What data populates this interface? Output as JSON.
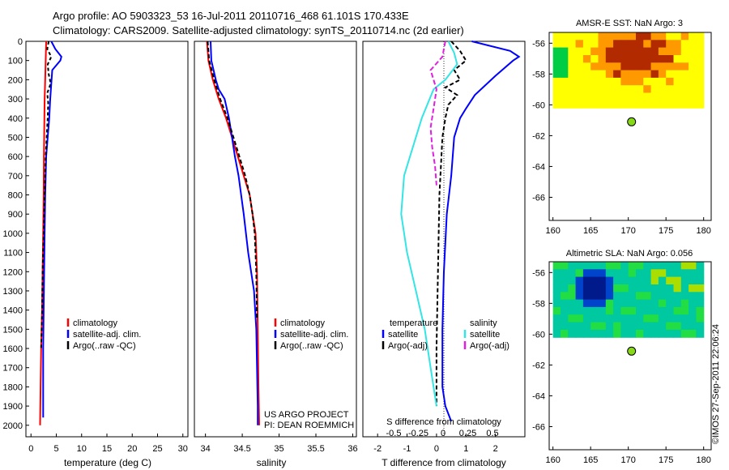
{
  "header": {
    "line1": "Argo profile: AO 5903323_53 16-Jul-2011 20110716_468 61.101S 170.433E",
    "line2": "Climatology: CARS2009. Satellite-adjusted climatology: synTS_20110714.nc (2d earlier)"
  },
  "credit": "©IMOS 27-Sep-2011 22:06:24",
  "project": {
    "line1": "US ARGO PROJECT",
    "line2": "PI: DEAN ROEMMICH"
  },
  "colors": {
    "climatology": "#ff0000",
    "satellite": "#0000ff",
    "argo": "#000000",
    "sal_satellite": "#33e5e5",
    "sal_argo": "#e01fe0",
    "dot": "#88d81a"
  },
  "chart_data": [
    {
      "type": "line",
      "id": "temperature",
      "xlabel": "temperature (deg C)",
      "ylabel": "",
      "xlim": [
        -1,
        31
      ],
      "ylim": [
        2060,
        0
      ],
      "xticks": [
        0,
        5,
        10,
        15,
        20,
        25,
        30
      ],
      "yticks": [
        0,
        100,
        200,
        300,
        400,
        500,
        600,
        700,
        800,
        900,
        1000,
        1100,
        1200,
        1300,
        1400,
        1500,
        1600,
        1700,
        1800,
        1900,
        2000
      ],
      "legend": [
        {
          "label": "climatology",
          "key": "climatology"
        },
        {
          "label": "satellite-adj. clim.",
          "key": "satellite"
        },
        {
          "label": "Argo(..raw -QC)",
          "key": "argo"
        }
      ],
      "series": [
        {
          "name": "climatology",
          "key": "climatology",
          "dash": "",
          "x": [
            3.0,
            2.9,
            2.8,
            2.7,
            2.65,
            2.6,
            2.55,
            2.5,
            2.4,
            2.3,
            2.2,
            2.0,
            1.9,
            1.8
          ],
          "y": [
            0,
            100,
            200,
            300,
            400,
            500,
            600,
            800,
            1000,
            1200,
            1400,
            1600,
            1800,
            2000
          ]
        },
        {
          "name": "satellite-adj. clim.",
          "key": "satellite",
          "dash": "",
          "x": [
            4.0,
            4.8,
            6.0,
            5.8,
            4.2,
            3.8,
            3.6,
            3.3,
            3.0,
            2.8,
            2.7,
            2.6,
            2.5,
            2.4,
            2.4,
            2.4
          ],
          "y": [
            0,
            40,
            80,
            100,
            150,
            300,
            400,
            500,
            600,
            800,
            1000,
            1200,
            1400,
            1600,
            1800,
            1960
          ]
        },
        {
          "name": "Argo(..raw -QC)",
          "key": "argo",
          "dash": "4,3",
          "x": [
            3.5,
            3.2,
            4.0,
            3.3,
            3.5,
            3.9,
            3.2,
            3.4,
            3.3,
            3.1,
            2.9,
            2.7,
            2.5,
            2.3,
            2.2,
            2.0
          ],
          "y": [
            0,
            40,
            80,
            120,
            170,
            220,
            270,
            320,
            400,
            500,
            600,
            800,
            1000,
            1200,
            1400,
            1600
          ]
        }
      ]
    },
    {
      "type": "line",
      "id": "salinity",
      "xlabel": "salinity",
      "ylabel": "",
      "xlim": [
        33.85,
        36.05
      ],
      "ylim": [
        2060,
        0
      ],
      "xticks": [
        34,
        34.5,
        35,
        35.5,
        36
      ],
      "xticklabels": [
        "34",
        "34.5",
        "35",
        "35.5",
        "36"
      ],
      "legend": [
        {
          "label": "climatology",
          "key": "climatology"
        },
        {
          "label": "satellite-adj. clim.",
          "key": "satellite"
        },
        {
          "label": "Argo(..raw -QC)",
          "key": "argo"
        }
      ],
      "series": [
        {
          "name": "climatology",
          "key": "climatology",
          "dash": "",
          "x": [
            34.02,
            34.04,
            34.1,
            34.18,
            34.28,
            34.36,
            34.44,
            34.52,
            34.6,
            34.64,
            34.68,
            34.7,
            34.71,
            34.72,
            34.73
          ],
          "y": [
            0,
            100,
            200,
            300,
            400,
            500,
            600,
            700,
            800,
            900,
            1000,
            1200,
            1500,
            1800,
            2000
          ]
        },
        {
          "name": "satellite-adj. clim.",
          "key": "satellite",
          "dash": "",
          "x": [
            34.07,
            34.08,
            34.14,
            34.18,
            34.26,
            34.32,
            34.36,
            34.4,
            34.45,
            34.52,
            34.58,
            34.62,
            34.66,
            34.69,
            34.7,
            34.71,
            34.71
          ],
          "y": [
            0,
            100,
            200,
            250,
            300,
            400,
            500,
            600,
            700,
            900,
            1100,
            1200,
            1300,
            1500,
            1700,
            1900,
            2000
          ]
        },
        {
          "name": "Argo(..raw -QC)",
          "key": "argo",
          "dash": "5,3",
          "x": [
            34.03,
            34.05,
            34.12,
            34.2,
            34.3,
            34.38,
            34.46,
            34.54,
            34.6,
            34.64,
            34.67,
            34.69,
            34.7
          ],
          "y": [
            0,
            100,
            200,
            300,
            400,
            500,
            600,
            700,
            800,
            900,
            1000,
            1200,
            1450
          ]
        }
      ]
    },
    {
      "type": "line",
      "id": "difference",
      "xlabel": "T difference from climatology",
      "ylabel": "",
      "xlim": [
        -2.5,
        3.0
      ],
      "ylim": [
        2060,
        0
      ],
      "xticks": [
        -2,
        -1,
        0,
        1,
        2
      ],
      "secondary_xlabel": "S difference from climatology",
      "secondary_xticks": [
        "-0.5",
        "-0.25",
        "0",
        "0.25",
        "0.5"
      ],
      "legend": [
        {
          "label": "temperature",
          "key": "header_t"
        },
        {
          "label": "satellite",
          "key": "satellite"
        },
        {
          "label": "Argo(-adj)",
          "key": "argo"
        },
        {
          "label": "salinity",
          "key": "header_s"
        },
        {
          "label": "satellite",
          "key": "sal_satellite"
        },
        {
          "label": "Argo(-adj)",
          "key": "sal_argo"
        }
      ],
      "series": [
        {
          "name": "T satellite",
          "key": "satellite",
          "dash": "",
          "x": [
            1.2,
            2.5,
            2.8,
            2.6,
            2.0,
            1.3,
            1.0,
            0.8,
            0.6,
            0.5,
            0.35,
            0.25,
            0.2,
            0.2,
            0.3,
            0.5
          ],
          "y": [
            0,
            50,
            80,
            100,
            180,
            280,
            350,
            400,
            500,
            700,
            900,
            1200,
            1500,
            1800,
            1900,
            1980
          ]
        },
        {
          "name": "T Argo(-adj)",
          "key": "argo",
          "dash": "5,3",
          "x": [
            0.5,
            0.8,
            1.0,
            0.6,
            0.8,
            0.3,
            0.7,
            0.4,
            0.3,
            0.2,
            0.1,
            0.05,
            0.0,
            0.0
          ],
          "y": [
            0,
            50,
            100,
            150,
            200,
            240,
            280,
            330,
            400,
            500,
            800,
            1200,
            1600,
            1900
          ]
        },
        {
          "name": "S satellite",
          "key": "sal_satellite",
          "dash": "",
          "x": [
            0.4,
            0.6,
            0.7,
            0.3,
            -0.1,
            -0.5,
            -0.8,
            -1.1,
            -1.2,
            -1.0,
            -0.7,
            -0.4,
            -0.2,
            0.0
          ],
          "y": [
            0,
            60,
            120,
            200,
            250,
            400,
            550,
            700,
            900,
            1100,
            1300,
            1500,
            1700,
            1900
          ]
        },
        {
          "name": "S Argo(-adj)",
          "key": "sal_argo",
          "dash": "6,3",
          "x": [
            0.3,
            0.2,
            -0.2,
            0.0,
            -0.1,
            -0.2,
            -0.15,
            -0.05,
            0.0
          ],
          "y": [
            0,
            80,
            150,
            250,
            350,
            450,
            550,
            650,
            750
          ]
        }
      ]
    },
    {
      "type": "heatmap",
      "id": "sst",
      "title": "AMSR-E SST: NaN Argo: 3",
      "xlim": [
        159.5,
        181
      ],
      "ylim": [
        -67.5,
        -55.3
      ],
      "xticks": [
        160,
        165,
        170,
        175,
        180
      ],
      "yticks": [
        -56,
        -58,
        -60,
        -62,
        -64,
        -66
      ],
      "coverage": {
        "lon": [
          160,
          180
        ],
        "lat": [
          -60.2,
          -55.3
        ]
      },
      "colormap": [
        "#ffff00",
        "#ff9900",
        "#b22b00",
        "#00cc44"
      ],
      "argo_position": {
        "lon": 170.433,
        "lat": -61.101
      }
    },
    {
      "type": "heatmap",
      "id": "sla",
      "title": "Altimetric SLA: NaN Argo: 0.056",
      "xlim": [
        159.5,
        181
      ],
      "ylim": [
        -67.5,
        -55.3
      ],
      "xticks": [
        160,
        165,
        170,
        175,
        180
      ],
      "yticks": [
        -56,
        -58,
        -60,
        -62,
        -64,
        -66
      ],
      "coverage": {
        "lon": [
          160,
          180
        ],
        "lat": [
          -60.2,
          -55.3
        ]
      },
      "colormap": [
        "#00c8a0",
        "#22dd44",
        "#aadd00",
        "#0044cc",
        "#001a8c"
      ],
      "argo_position": {
        "lon": 170.433,
        "lat": -61.101
      }
    }
  ]
}
